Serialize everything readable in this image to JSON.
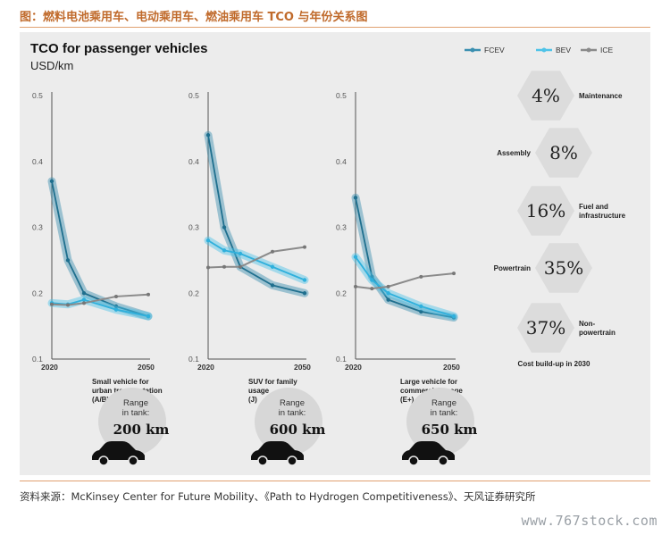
{
  "figure_title": "图：燃料电池乘用车、电动乘用车、燃油乘用车 TCO 与年份关系图",
  "source": "资料来源：McKinsey Center for Future Mobility、《Path to Hydrogen Competitiveness》、天风证券研究所",
  "watermark": "www.767stock.com",
  "chart_data": [
    {
      "type": "line",
      "title": "TCO for passenger vehicles",
      "ylabel": "USD/km",
      "x_ticks": [
        "2020",
        "2050"
      ],
      "y_ticks": [
        "0.1",
        "0.2",
        "0.3",
        "0.4",
        "0.5"
      ],
      "ylim": [
        0.1,
        0.5
      ],
      "xlim": [
        2020,
        2050
      ],
      "legend": [
        "FCEV",
        "BEV",
        "ICE"
      ],
      "legend_position": "top-right",
      "colors": {
        "FCEV": "#3a8fb0",
        "BEV": "#4ec3e8",
        "ICE": "#8a8a8a"
      },
      "panels": [
        {
          "vehicle": "Small vehicle for urban transportation (A/B)",
          "vehicle_lines": [
            "Small vehicle for",
            "urban transportation",
            "(A/B)"
          ],
          "range_label": [
            "Range",
            "in tank:"
          ],
          "range_value": "200 km",
          "series": [
            {
              "name": "FCEV",
              "x": [
                2020,
                2025,
                2030,
                2040,
                2050
              ],
              "y": [
                0.37,
                0.25,
                0.2,
                0.18,
                0.165
              ]
            },
            {
              "name": "BEV",
              "x": [
                2020,
                2025,
                2030,
                2040,
                2050
              ],
              "y": [
                0.185,
                0.183,
                0.19,
                0.175,
                0.165
              ]
            },
            {
              "name": "ICE",
              "x": [
                2020,
                2025,
                2030,
                2040,
                2050
              ],
              "y": [
                0.183,
                0.182,
                0.185,
                0.195,
                0.198
              ]
            }
          ]
        },
        {
          "vehicle": "SUV for family usage (J)",
          "vehicle_lines": [
            "SUV for family",
            "usage",
            "(J)"
          ],
          "range_label": [
            "Range",
            "in tank:"
          ],
          "range_value": "600 km",
          "series": [
            {
              "name": "FCEV",
              "x": [
                2020,
                2025,
                2030,
                2040,
                2050
              ],
              "y": [
                0.44,
                0.3,
                0.24,
                0.212,
                0.2
              ]
            },
            {
              "name": "BEV",
              "x": [
                2020,
                2025,
                2030,
                2040,
                2050
              ],
              "y": [
                0.28,
                0.265,
                0.26,
                0.24,
                0.22
              ]
            },
            {
              "name": "ICE",
              "x": [
                2020,
                2025,
                2030,
                2040,
                2050
              ],
              "y": [
                0.239,
                0.24,
                0.24,
                0.263,
                0.27
              ]
            }
          ]
        },
        {
          "vehicle": "Large vehicle for commercial usage (E+)",
          "vehicle_lines": [
            "Large vehicle for",
            "commercial usage",
            "(E+)"
          ],
          "range_label": [
            "Range",
            "in tank:"
          ],
          "range_value": "650 km",
          "series": [
            {
              "name": "FCEV",
              "x": [
                2020,
                2025,
                2030,
                2040,
                2050
              ],
              "y": [
                0.345,
                0.225,
                0.19,
                0.172,
                0.163
              ]
            },
            {
              "name": "BEV",
              "x": [
                2020,
                2025,
                2030,
                2040,
                2050
              ],
              "y": [
                0.255,
                0.22,
                0.2,
                0.18,
                0.165
              ]
            },
            {
              "name": "ICE",
              "x": [
                2020,
                2025,
                2030,
                2040,
                2050
              ],
              "y": [
                0.21,
                0.207,
                0.21,
                0.225,
                0.23
              ]
            }
          ]
        }
      ]
    },
    {
      "type": "table",
      "title": "Cost build-up in 2030",
      "items": [
        {
          "label": "Maintenance",
          "label_lines": [
            "Maintenance"
          ],
          "value": "4%",
          "label_side": "right"
        },
        {
          "label": "Assembly",
          "label_lines": [
            "Assembly"
          ],
          "value": "8%",
          "label_side": "left"
        },
        {
          "label": "Fuel and infrastructure",
          "label_lines": [
            "Fuel and",
            "infrastructure"
          ],
          "value": "16%",
          "label_side": "right"
        },
        {
          "label": "Powertrain",
          "label_lines": [
            "Powertrain"
          ],
          "value": "35%",
          "label_side": "left"
        },
        {
          "label": "Non-powertrain",
          "label_lines": [
            "Non-",
            "powertrain"
          ],
          "value": "37%",
          "label_side": "right"
        }
      ]
    }
  ]
}
